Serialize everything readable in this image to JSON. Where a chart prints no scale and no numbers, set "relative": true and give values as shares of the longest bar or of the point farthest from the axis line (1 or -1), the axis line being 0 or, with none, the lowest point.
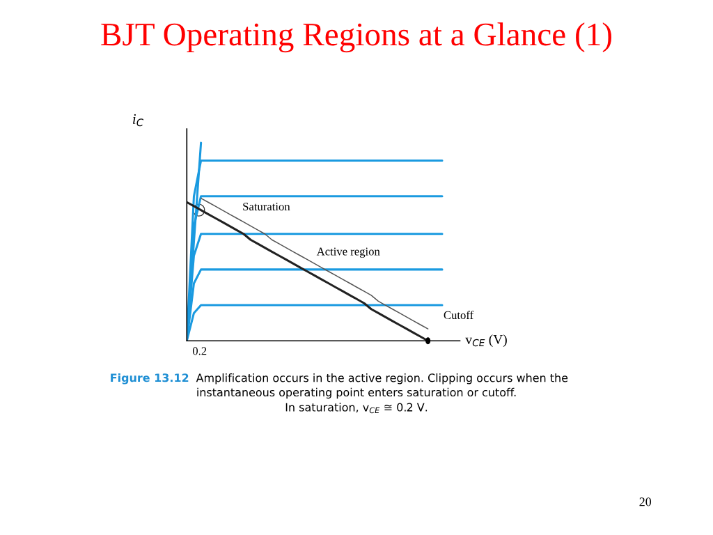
{
  "chart_data": {
    "type": "line",
    "title": "BJT Operating Regions at a Glance (1)",
    "xlabel": "v$_{CE}$ (V)",
    "ylabel": "i$_{C}$",
    "relative": true,
    "grid": false,
    "legend": false,
    "marker": "none",
    "line_style": "solid",
    "categories": [
      null,
      null,
      null,
      null,
      null,
      null,
      null,
      null,
      null,
      null,
      null,
      null,
      null,
      null,
      null,
      null,
      null,
      null,
      null,
      null,
      null,
      null,
      null,
      null,
      null,
      null,
      null,
      null,
      null,
      null,
      null,
      null,
      null,
      null,
      null,
      null,
      null
    ],
    "series": [
      {
        "color": "#1a9ae0",
        "values": [
          0,
          0.73,
          0.91,
          0.91,
          0.91,
          0.91,
          0.91,
          0.91,
          0.91,
          0.91,
          0.91,
          0.91,
          0.91,
          0.91,
          0.91,
          0.91,
          0.91,
          0.91,
          0.91,
          0.91,
          0.91,
          0.91,
          0.91,
          0.91,
          0.91,
          0.91,
          0.91,
          0.91,
          0.91,
          0.91,
          0.91,
          0.91,
          0.91,
          0.91,
          0.91,
          0.91,
          0.91
        ]
      },
      {
        "color": "#1a9ae0",
        "values": [
          0,
          0.58,
          0.73,
          0.73,
          0.73,
          0.73,
          0.73,
          0.73,
          0.73,
          0.73,
          0.73,
          0.73,
          0.73,
          0.73,
          0.73,
          0.73,
          0.73,
          0.73,
          0.73,
          0.73,
          0.73,
          0.73,
          0.73,
          0.73,
          0.73,
          0.73,
          0.73,
          0.73,
          0.73,
          0.73,
          0.73,
          0.73,
          0.73,
          0.73,
          0.73,
          0.73,
          0.73
        ]
      },
      {
        "color": "#1a9ae0",
        "values": [
          0,
          0.43,
          0.54,
          0.54,
          0.54,
          0.54,
          0.54,
          0.54,
          0.54,
          0.54,
          0.54,
          0.54,
          0.54,
          0.54,
          0.54,
          0.54,
          0.54,
          0.54,
          0.54,
          0.54,
          0.54,
          0.54,
          0.54,
          0.54,
          0.54,
          0.54,
          0.54,
          0.54,
          0.54,
          0.54,
          0.54,
          0.54,
          0.54,
          0.54,
          0.54,
          0.54,
          0.54
        ]
      },
      {
        "color": "#1a9ae0",
        "values": [
          0,
          0.29,
          0.36,
          0.36,
          0.36,
          0.36,
          0.36,
          0.36,
          0.36,
          0.36,
          0.36,
          0.36,
          0.36,
          0.36,
          0.36,
          0.36,
          0.36,
          0.36,
          0.36,
          0.36,
          0.36,
          0.36,
          0.36,
          0.36,
          0.36,
          0.36,
          0.36,
          0.36,
          0.36,
          0.36,
          0.36,
          0.36,
          0.36,
          0.36,
          0.36,
          0.36,
          0.36
        ]
      },
      {
        "color": "#1a9ae0",
        "values": [
          0,
          0.14,
          0.18,
          0.18,
          0.18,
          0.18,
          0.18,
          0.18,
          0.18,
          0.18,
          0.18,
          0.18,
          0.18,
          0.18,
          0.18,
          0.18,
          0.18,
          0.18,
          0.18,
          0.18,
          0.18,
          0.18,
          0.18,
          0.18,
          0.18,
          0.18,
          0.18,
          0.18,
          0.18,
          0.18,
          0.18,
          0.18,
          0.18,
          0.18,
          0.18,
          0.18,
          0.18
        ]
      },
      {
        "color": "#1a9ae0",
        "values": [
          0,
          0.5,
          1,
          null,
          null,
          null,
          null,
          null,
          null,
          null,
          null,
          null,
          null,
          null,
          null,
          null,
          null,
          null,
          null,
          null,
          null,
          null,
          null,
          null,
          null,
          null,
          null,
          null,
          null,
          null,
          null,
          null,
          null,
          null,
          null,
          null,
          null
        ]
      },
      {
        "color": "#222222",
        "values": [
          0.7,
          0.68,
          0.66,
          0.64,
          0.62,
          0.6,
          0.58,
          0.56,
          0.54,
          0.51,
          0.49,
          0.47,
          0.45,
          0.43,
          0.41,
          0.39,
          0.37,
          0.35,
          0.33,
          0.31,
          0.29,
          0.27,
          0.25,
          0.23,
          0.21,
          0.19,
          0.16,
          0.14,
          0.12,
          0.1,
          0.08,
          0.06,
          0.04,
          0.02,
          0,
          null,
          null
        ]
      },
      {
        "color": "#555555",
        "values": [
          null,
          null,
          0.72,
          0.7,
          0.68,
          0.66,
          0.64,
          0.62,
          0.6,
          0.58,
          0.56,
          0.54,
          0.51,
          0.49,
          0.47,
          0.45,
          0.43,
          0.41,
          0.39,
          0.37,
          0.35,
          0.33,
          0.31,
          0.29,
          0.27,
          0.25,
          0.23,
          0.2,
          0.18,
          0.16,
          0.14,
          0.12,
          0.1,
          0.08,
          0.06,
          null,
          null
        ]
      }
    ],
    "annotations": [
      "Saturation",
      "Active region",
      "Cutoff",
      "0.2",
      "Figure 13.12",
      "Amplification occurs in the active region. Clipping occurs when the",
      "instantaneous operating point enters saturation or cutoff.",
      "In saturation, v$_{CE}$ ≅ 0.2 V.",
      "20"
    ]
  }
}
